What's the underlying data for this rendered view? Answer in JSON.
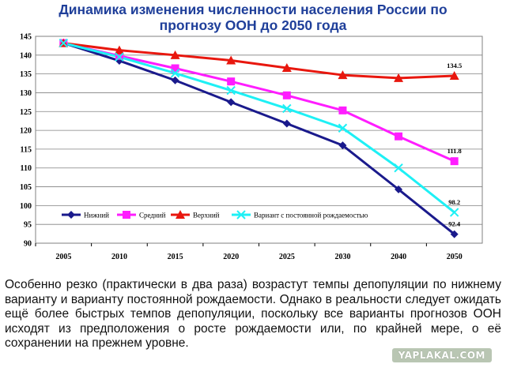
{
  "header": {
    "title_line1": "Динамика изменения численности населения России по",
    "title_line2": "прогнозу ООН до 2050 года"
  },
  "chart_data": {
    "type": "line",
    "title": "",
    "xlabel": "",
    "ylabel": "",
    "categories": [
      "2005",
      "2010",
      "2015",
      "2020",
      "2025",
      "2030",
      "2040",
      "2050"
    ],
    "ylim": [
      90,
      145
    ],
    "yticks": [
      90,
      95,
      100,
      105,
      110,
      115,
      120,
      125,
      130,
      135,
      140,
      145
    ],
    "grid": true,
    "legend_position": "inside-bottom",
    "series": [
      {
        "name": "Нижний",
        "color": "#1a1a8c",
        "marker": "diamond",
        "values": [
          143.2,
          138.5,
          133.3,
          127.5,
          121.8,
          116.0,
          104.3,
          92.4
        ]
      },
      {
        "name": "Средний",
        "color": "#ff1dff",
        "marker": "square",
        "values": [
          143.2,
          139.8,
          136.5,
          133.0,
          129.3,
          125.3,
          118.4,
          111.8
        ]
      },
      {
        "name": "Верхний",
        "color": "#e8170e",
        "marker": "triangle",
        "values": [
          143.2,
          141.3,
          140.0,
          138.6,
          136.6,
          134.7,
          133.9,
          134.5
        ]
      },
      {
        "name": "Вариант с постоянной рождаемостью",
        "color": "#1ef0f5",
        "marker": "x",
        "values": [
          143.2,
          139.5,
          135.2,
          130.6,
          125.8,
          120.6,
          110.0,
          98.2
        ]
      }
    ],
    "data_labels": [
      {
        "series": 2,
        "index": 7,
        "text": "134.5"
      },
      {
        "series": 1,
        "index": 7,
        "text": "111.8"
      },
      {
        "series": 3,
        "index": 7,
        "text": "98.2"
      },
      {
        "series": 0,
        "index": 7,
        "text": "92.4"
      }
    ]
  },
  "body": {
    "paragraph": "Особенно резко (практически в два раза) возрастут темпы депопуляции по нижнему варианту и варианту постоянной рождаемости. Однако в реальности следует ожидать ещё более быстрых темпов депопуляции, поскольку все варианты прогнозов ООН исходят из предположения о росте рождаемости или, по крайней мере, о её сохранении на прежнем уровне."
  },
  "watermark": {
    "text": "YAPLAKAL.COM"
  }
}
